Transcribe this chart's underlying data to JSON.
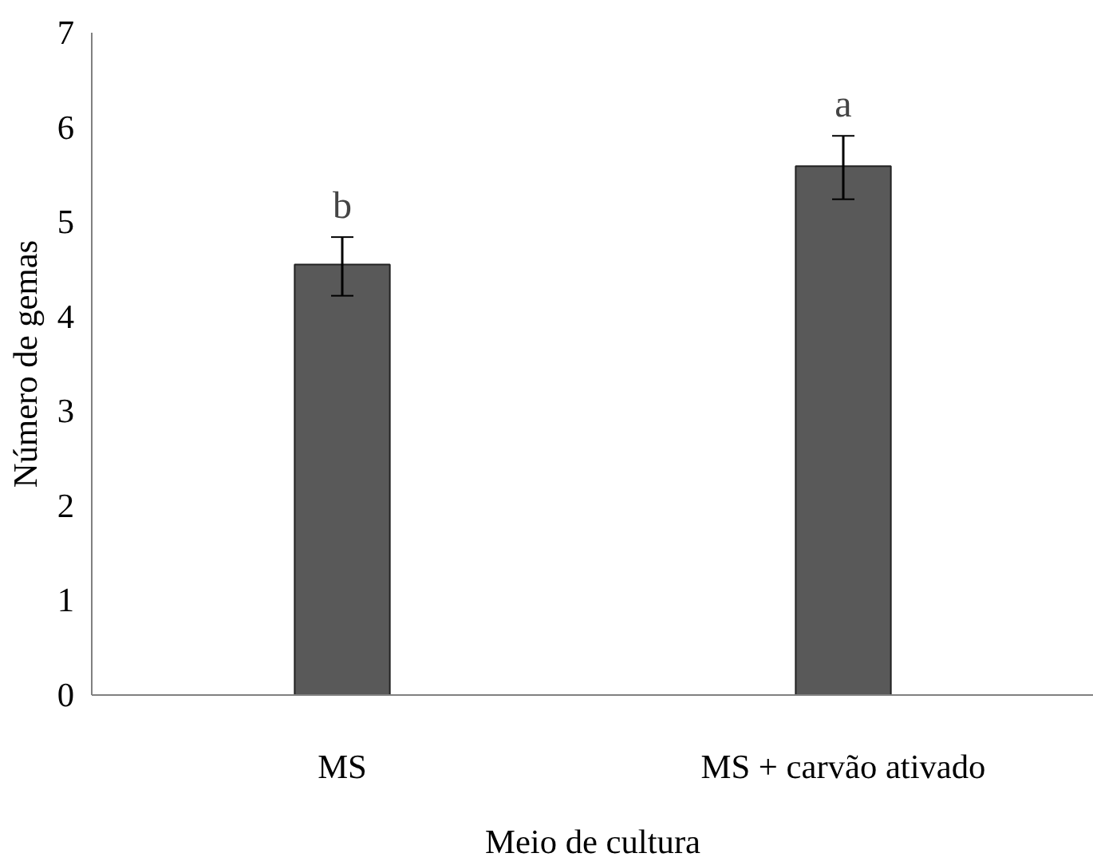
{
  "chart_data": {
    "type": "bar",
    "xlabel": "Meio de cultura",
    "ylabel": "Número de gemas",
    "categories": [
      "MS",
      "MS + carvão ativado"
    ],
    "values": [
      4.55,
      5.59
    ],
    "errors": [
      [
        4.22,
        4.84
      ],
      [
        5.24,
        5.91
      ]
    ],
    "color": "#595959",
    "ylim": [
      0,
      7
    ],
    "yticks": [
      0,
      1,
      2,
      3,
      4,
      5,
      6,
      7
    ],
    "grid": false,
    "annotations": [
      {
        "text": "b",
        "x": "MS",
        "y": 4.84
      },
      {
        "text": "a",
        "x": "MS + carvão ativado",
        "y": 5.91
      }
    ]
  }
}
